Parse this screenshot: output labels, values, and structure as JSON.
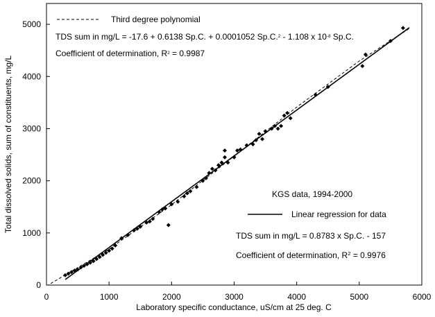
{
  "chart_data": {
    "type": "scatter",
    "x_label": "Laboratory specific conductance, uS/cm at 25 deg. C",
    "y_label": "Total dissolved solids, sum of constituents, mg/L",
    "xlim": [
      0,
      6000
    ],
    "ylim": [
      0,
      5400
    ],
    "xticks": [
      0,
      1000,
      2000,
      3000,
      4000,
      5000,
      6000
    ],
    "yticks": [
      0,
      1000,
      2000,
      3000,
      4000,
      5000
    ],
    "points": {
      "color": "#000000",
      "x": [
        300,
        350,
        400,
        450,
        500,
        550,
        600,
        650,
        700,
        750,
        800,
        850,
        900,
        950,
        1000,
        1050,
        1100,
        1200,
        1300,
        1400,
        1450,
        1500,
        1600,
        1650,
        1700,
        1800,
        1850,
        1900,
        1950,
        2000,
        2100,
        2200,
        2250,
        2300,
        2400,
        2500,
        2550,
        2600,
        2650,
        2700,
        2750,
        2800,
        2850,
        2850,
        2900,
        3000,
        3050,
        3100,
        3200,
        3300,
        3350,
        3400,
        3450,
        3500,
        3600,
        3650,
        3700,
        3750,
        3800,
        3850,
        3900,
        4300,
        4500,
        5050,
        5100,
        5500,
        5700
      ],
      "values": [
        190,
        220,
        250,
        280,
        300,
        340,
        370,
        400,
        430,
        460,
        500,
        540,
        580,
        620,
        660,
        700,
        760,
        900,
        960,
        1050,
        1080,
        1120,
        1200,
        1220,
        1270,
        1400,
        1450,
        1470,
        1150,
        1550,
        1600,
        1700,
        1760,
        1800,
        1880,
        2000,
        2050,
        2150,
        2230,
        2200,
        2300,
        2350,
        2450,
        2580,
        2350,
        2450,
        2580,
        2600,
        2680,
        2700,
        2780,
        2900,
        2800,
        2950,
        3000,
        3050,
        3000,
        3050,
        3250,
        3300,
        3200,
        3650,
        3800,
        4200,
        4420,
        4680,
        4930
      ]
    },
    "series": [
      {
        "name": "Third degree polynomial",
        "color": "#000000",
        "dashed": true,
        "x": [
          0,
          1000,
          2000,
          3000,
          4000,
          5000,
          5800
        ],
        "values": [
          -17.6,
          690.3,
          1542.2,
          2471.4,
          3411.7,
          4296.4,
          4919.5
        ]
      },
      {
        "name": "Linear regression for data",
        "color": "#000000",
        "dashed": false,
        "x": [
          300,
          5800
        ],
        "values": [
          106.5,
          4937.1
        ]
      }
    ],
    "annotations": [
      [
        {
          "text": "TDS sum in mg/L = -17.6 + 0.6138 Sp.C. + 0.0001052 Sp.C."
        },
        {
          "text": "2",
          "sup": true
        },
        {
          "text": " - 1.108 x 10"
        },
        {
          "text": "-8",
          "sup": true
        },
        {
          "text": " Sp.C."
        }
      ],
      [
        {
          "text": "Coefficient of determination, R"
        },
        {
          "text": "2",
          "sup": true
        },
        {
          "text": " = 0.9987"
        }
      ],
      [
        {
          "text": "KGS data, 1994-2000"
        }
      ],
      [
        {
          "text": "TDS sum in mg/L = 0.8783 x Sp.C. - 157"
        }
      ],
      [
        {
          "text": "Coefficient of determination, R"
        },
        {
          "text": "2",
          "sup": true
        },
        {
          "text": " = 0.9976"
        }
      ]
    ]
  }
}
